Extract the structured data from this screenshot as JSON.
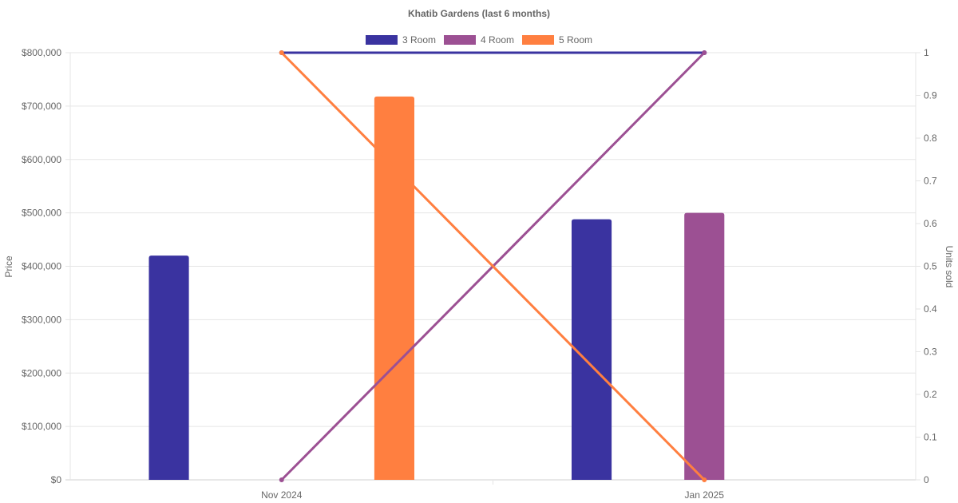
{
  "chart_data": {
    "type": "bar",
    "title": "Khatib Gardens (last 6 months)",
    "categories": [
      "Nov 2024",
      "Jan 2025"
    ],
    "y_left": {
      "label": "Price",
      "range": [
        0,
        800000
      ],
      "ticks": [
        "$0",
        "$100,000",
        "$200,000",
        "$300,000",
        "$400,000",
        "$500,000",
        "$600,000",
        "$700,000",
        "$800,000"
      ]
    },
    "y_right": {
      "label": "Units sold",
      "range": [
        0,
        1
      ],
      "ticks": [
        "0",
        "0.1",
        "0.2",
        "0.3",
        "0.4",
        "0.5",
        "0.6",
        "0.7",
        "0.8",
        "0.9",
        "1"
      ]
    },
    "grid": true,
    "legend_position": "top",
    "series": [
      {
        "name": "3 Room",
        "color": "#3a33a0",
        "price": [
          420000,
          488000
        ],
        "units": [
          1,
          1
        ]
      },
      {
        "name": "4 Room",
        "color": "#9c5093",
        "price": [
          null,
          500000
        ],
        "units": [
          0,
          1
        ]
      },
      {
        "name": "5 Room",
        "color": "#ff7f40",
        "price": [
          718000,
          null
        ],
        "units": [
          1,
          0
        ]
      }
    ]
  }
}
